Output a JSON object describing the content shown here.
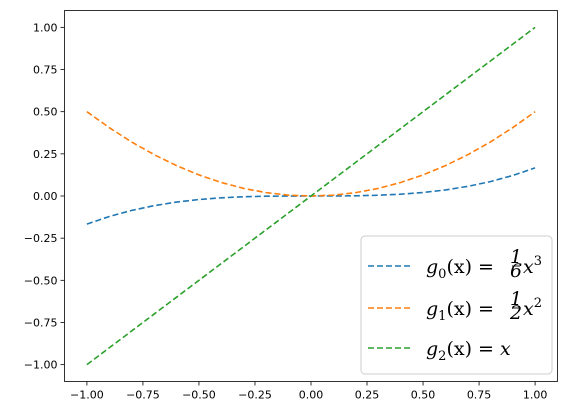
{
  "chart_data": {
    "type": "line",
    "title": "",
    "xlabel": "",
    "ylabel": "",
    "xlim": [
      -1.1,
      1.1
    ],
    "ylim": [
      -1.1,
      1.1
    ],
    "x_ticks": [
      -1.0,
      -0.75,
      -0.5,
      -0.25,
      0.0,
      0.25,
      0.5,
      0.75,
      1.0
    ],
    "x_tick_labels": [
      "−1.00",
      "−0.75",
      "−0.50",
      "−0.25",
      "0.00",
      "0.25",
      "0.50",
      "0.75",
      "1.00"
    ],
    "y_ticks": [
      1.0,
      0.75,
      0.5,
      0.25,
      0.0,
      -0.25,
      -0.5,
      -0.75,
      -1.0
    ],
    "y_tick_labels": [
      "1.00",
      "0.75",
      "0.50",
      "0.25",
      "0.00",
      "−0.25",
      "−0.50",
      "−0.75",
      "−1.00"
    ],
    "grid": false,
    "legend_position": "lower-right",
    "x": [
      -1.0,
      -0.9,
      -0.8,
      -0.7,
      -0.6,
      -0.5,
      -0.4,
      -0.3,
      -0.2,
      -0.1,
      0.0,
      0.1,
      0.2,
      0.3,
      0.4,
      0.5,
      0.6,
      0.7,
      0.8,
      0.9,
      1.0
    ],
    "series": [
      {
        "name": "g0(x) = (1/6)x³",
        "color": "#1f77b4",
        "line_style": "dashed",
        "values": [
          -0.1667,
          -0.1215,
          -0.0853,
          -0.0572,
          -0.036,
          -0.0208,
          -0.0107,
          -0.0045,
          -0.0013,
          -0.0002,
          0.0,
          0.0002,
          0.0013,
          0.0045,
          0.0107,
          0.0208,
          0.036,
          0.0572,
          0.0853,
          0.1215,
          0.1667
        ]
      },
      {
        "name": "g1(x) = (1/2)x²",
        "color": "#ff7f0e",
        "line_style": "dashed",
        "values": [
          0.5,
          0.405,
          0.32,
          0.245,
          0.18,
          0.125,
          0.08,
          0.045,
          0.02,
          0.005,
          0.0,
          0.005,
          0.02,
          0.045,
          0.08,
          0.125,
          0.18,
          0.245,
          0.32,
          0.405,
          0.5
        ]
      },
      {
        "name": "g2(x) = x",
        "color": "#2ca02c",
        "line_style": "dashed",
        "values": [
          -1.0,
          -0.9,
          -0.8,
          -0.7,
          -0.6,
          -0.5,
          -0.4,
          -0.3,
          -0.2,
          -0.1,
          0.0,
          0.1,
          0.2,
          0.3,
          0.4,
          0.5,
          0.6,
          0.7,
          0.8,
          0.9,
          1.0
        ]
      }
    ]
  },
  "legend": {
    "g0": {
      "func": "g",
      "sub": "0",
      "arg": "(x) = ",
      "num": "1",
      "den": "6",
      "var": "x",
      "exp": "3"
    },
    "g1": {
      "func": "g",
      "sub": "1",
      "arg": "(x) = ",
      "num": "1",
      "den": "2",
      "var": "x",
      "exp": "2"
    },
    "g2": {
      "func": "g",
      "sub": "2",
      "arg": "(x) = ",
      "var": "x"
    }
  }
}
